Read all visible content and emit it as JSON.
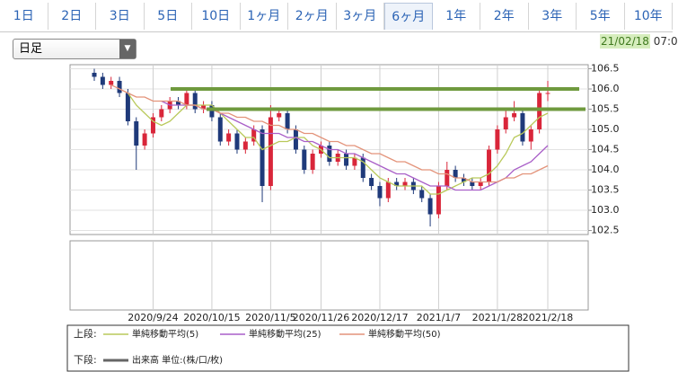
{
  "tabs": [
    "1日",
    "2日",
    "3日",
    "5日",
    "10日",
    "1ヶ月",
    "2ヶ月",
    "3ヶ月",
    "6ヶ月",
    "1年",
    "2年",
    "3年",
    "5年",
    "10年"
  ],
  "active_tab": 8,
  "interval_select": "日足",
  "timestamp": {
    "date": "21/02/18",
    "time": "07:0"
  },
  "chart_data": {
    "type": "candlestick",
    "categories": [
      null,
      null,
      null,
      null,
      null,
      null,
      null,
      "2020/9/24",
      null,
      null,
      null,
      null,
      null,
      null,
      "2020/10/15",
      null,
      null,
      null,
      null,
      null,
      null,
      "2020/11/5",
      null,
      null,
      null,
      null,
      null,
      "2020/11/26",
      null,
      null,
      null,
      null,
      null,
      null,
      "2020/12/17",
      null,
      null,
      null,
      null,
      null,
      null,
      "2021/1/7",
      null,
      null,
      null,
      null,
      null,
      null,
      "2021/1/28",
      null,
      null,
      null,
      null,
      null,
      "2021/2/18"
    ],
    "candles": {
      "open": [
        106.4,
        106.3,
        106.1,
        106.2,
        105.9,
        105.2,
        104.6,
        104.9,
        105.3,
        105.5,
        105.7,
        105.6,
        105.9,
        105.5,
        105.6,
        105.3,
        104.7,
        104.9,
        104.5,
        104.7,
        105.0,
        103.6,
        105.3,
        105.4,
        105.0,
        104.5,
        104.0,
        104.4,
        104.6,
        104.2,
        104.4,
        104.1,
        104.3,
        103.8,
        103.6,
        103.3,
        103.7,
        103.6,
        103.7,
        103.5,
        103.3,
        102.9,
        103.6,
        104.0,
        103.8,
        103.7,
        103.6,
        103.7,
        104.5,
        105.0,
        105.3,
        105.4,
        104.7,
        105.0,
        105.9
      ],
      "high": [
        106.5,
        106.4,
        106.3,
        106.3,
        106.0,
        105.3,
        105.0,
        105.4,
        105.6,
        105.8,
        105.8,
        106.0,
        106.0,
        105.7,
        105.7,
        105.4,
        105.0,
        105.0,
        104.8,
        105.1,
        105.1,
        105.6,
        105.5,
        105.5,
        105.1,
        104.6,
        104.5,
        104.7,
        104.7,
        104.5,
        104.5,
        104.4,
        104.4,
        103.9,
        103.7,
        103.8,
        103.8,
        103.8,
        103.8,
        103.6,
        103.4,
        103.7,
        104.2,
        104.1,
        103.9,
        103.8,
        103.8,
        104.6,
        105.1,
        105.5,
        105.7,
        105.5,
        105.1,
        106.0,
        106.2
      ],
      "low": [
        106.2,
        106.0,
        106.0,
        105.8,
        105.1,
        104.0,
        104.5,
        104.8,
        105.2,
        105.4,
        105.5,
        105.5,
        105.4,
        105.4,
        105.2,
        104.6,
        104.6,
        104.4,
        104.4,
        104.6,
        103.2,
        103.5,
        105.2,
        104.9,
        104.4,
        103.9,
        103.9,
        104.3,
        104.1,
        104.1,
        104.0,
        104.0,
        103.7,
        103.5,
        103.1,
        103.2,
        103.5,
        103.5,
        103.4,
        103.2,
        102.6,
        102.8,
        103.5,
        103.7,
        103.6,
        103.5,
        103.5,
        103.6,
        104.4,
        104.9,
        105.2,
        104.6,
        104.5,
        104.9,
        105.7
      ],
      "close": [
        106.3,
        106.1,
        106.2,
        105.9,
        105.2,
        104.6,
        104.9,
        105.3,
        105.5,
        105.7,
        105.6,
        105.9,
        105.5,
        105.6,
        105.3,
        104.7,
        104.9,
        104.5,
        104.7,
        105.0,
        103.6,
        105.3,
        105.4,
        105.0,
        104.5,
        104.0,
        104.4,
        104.6,
        104.2,
        104.4,
        104.1,
        104.3,
        103.8,
        103.6,
        103.3,
        103.7,
        103.6,
        103.7,
        103.5,
        103.3,
        102.9,
        103.6,
        104.0,
        103.8,
        103.7,
        103.6,
        103.7,
        104.5,
        105.0,
        105.3,
        105.4,
        104.7,
        105.0,
        105.9,
        105.9
      ],
      "up_color": "#d9263a",
      "down_color": "#1f3a7a"
    },
    "series": [
      {
        "name": "単純移動平均(5)",
        "color": "#b9c95a",
        "values": [
          null,
          null,
          null,
          null,
          105.9,
          105.6,
          105.4,
          105.2,
          105.1,
          105.2,
          105.4,
          105.6,
          105.6,
          105.6,
          105.6,
          105.4,
          105.2,
          105.0,
          104.8,
          104.8,
          104.5,
          104.6,
          104.7,
          104.7,
          104.8,
          104.8,
          104.6,
          104.5,
          104.3,
          104.3,
          104.3,
          104.3,
          104.2,
          104.0,
          103.8,
          103.7,
          103.6,
          103.6,
          103.6,
          103.6,
          103.4,
          103.4,
          103.5,
          103.6,
          103.7,
          103.8,
          103.8,
          103.9,
          104.1,
          104.4,
          104.8,
          104.9,
          105.1,
          105.3,
          105.4
        ]
      },
      {
        "name": "単純移動平均(25)",
        "color": "#a95fc8",
        "values": [
          null,
          null,
          null,
          null,
          null,
          null,
          null,
          null,
          105.7,
          105.6,
          105.6,
          105.6,
          105.6,
          105.5,
          105.5,
          105.4,
          105.3,
          105.2,
          105.1,
          105.0,
          104.9,
          104.9,
          104.9,
          104.8,
          104.8,
          104.7,
          104.7,
          104.6,
          104.5,
          104.5,
          104.4,
          104.4,
          104.3,
          104.2,
          104.1,
          104.0,
          103.9,
          103.9,
          103.8,
          103.7,
          103.6,
          103.6,
          103.6,
          103.5,
          103.5,
          103.5,
          103.5,
          103.6,
          103.7,
          103.8,
          104.0,
          104.1,
          104.2,
          104.4,
          104.6
        ]
      },
      {
        "name": "単純移動平均(50)",
        "color": "#e3937a",
        "values": [
          null,
          null,
          106.1,
          106.0,
          105.9,
          105.8,
          105.8,
          105.7,
          105.7,
          105.7,
          105.7,
          105.6,
          105.6,
          105.5,
          105.5,
          105.4,
          105.4,
          105.3,
          105.3,
          105.2,
          105.2,
          105.1,
          105.1,
          105.0,
          105.0,
          104.9,
          104.9,
          104.8,
          104.7,
          104.7,
          104.6,
          104.6,
          104.5,
          104.4,
          104.4,
          104.3,
          104.2,
          104.2,
          104.1,
          104.0,
          104.0,
          103.9,
          103.9,
          103.8,
          103.8,
          103.7,
          103.7,
          103.7,
          103.7,
          103.8,
          103.8,
          103.9,
          103.9,
          104.0,
          104.1
        ]
      }
    ],
    "reference_lines": [
      {
        "value": 106.0,
        "color": "#6f9a3e"
      },
      {
        "value": 105.5,
        "color": "#6f9a3e"
      }
    ],
    "volume": {
      "name": "出来高 単位:(株/口/枚)",
      "color": "#666666"
    },
    "legend_labels": {
      "upper": "上段:",
      "lower": "下段:"
    },
    "ylim": [
      102.4,
      106.6
    ],
    "yticks": [
      102.5,
      {
        "value": 103.0,
        "label": "103.0"
      },
      103.5,
      {
        "value": 104.0,
        "label": "104.0"
      },
      104.5,
      {
        "value": 105.0,
        "label": "105.0"
      },
      105.5,
      {
        "value": 106.0,
        "label": "106.0"
      },
      106.5
    ],
    "grid": true
  }
}
